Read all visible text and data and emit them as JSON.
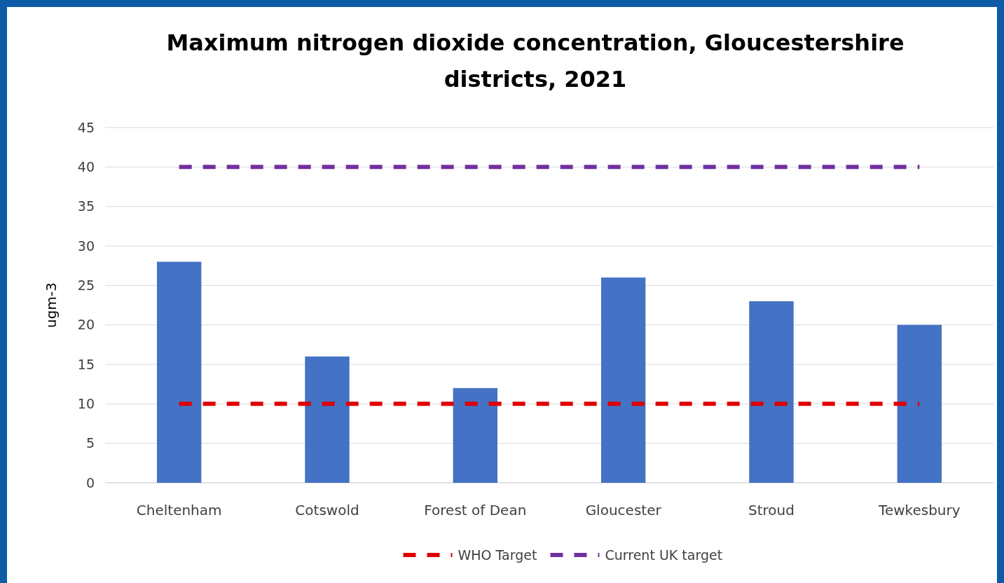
{
  "chart_data": {
    "type": "bar",
    "title": "Maximum nitrogen dioxide concentration, Gloucestershire districts, 2021",
    "ylabel": "ugm-3",
    "categories": [
      "Cheltenham",
      "Cotswold",
      "Forest of Dean",
      "Gloucester",
      "Stroud",
      "Tewkesbury"
    ],
    "series": [
      {
        "color": "#4472c4",
        "values": [
          28,
          16,
          12,
          26,
          23,
          20
        ]
      },
      {
        "type": "line",
        "name": "WHO Target",
        "color": "#e00000",
        "line_style": "dashed",
        "values": [
          10,
          10,
          10,
          10,
          10,
          10
        ]
      },
      {
        "type": "line",
        "name": "Current UK target",
        "color": "#7030a0",
        "line_style": "dashed",
        "values": [
          40,
          40,
          40,
          40,
          40,
          40
        ]
      }
    ],
    "ylim": [
      0,
      45
    ],
    "yticks": [
      0,
      5,
      10,
      15,
      20,
      25,
      30,
      35,
      40,
      45
    ],
    "grid": "y",
    "legend": "bottom"
  }
}
